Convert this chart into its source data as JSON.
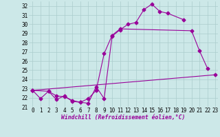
{
  "line1_points": [
    [
      0,
      22.8
    ],
    [
      1,
      21.9
    ],
    [
      2,
      22.7
    ],
    [
      3,
      21.8
    ],
    [
      4,
      22.2
    ],
    [
      5,
      21.6
    ],
    [
      6,
      21.5
    ],
    [
      7,
      21.4
    ],
    [
      8,
      23.2
    ],
    [
      9,
      21.9
    ],
    [
      10,
      28.7
    ],
    [
      11,
      29.4
    ],
    [
      12,
      30.0
    ],
    [
      13,
      30.2
    ],
    [
      14,
      31.6
    ],
    [
      15,
      32.2
    ],
    [
      16,
      31.4
    ],
    [
      17,
      31.2
    ],
    [
      19,
      30.5
    ]
  ],
  "line2_points": [
    [
      0,
      22.8
    ],
    [
      2,
      22.7
    ],
    [
      3,
      22.2
    ],
    [
      4,
      22.1
    ],
    [
      5,
      21.7
    ],
    [
      6,
      21.5
    ],
    [
      7,
      21.9
    ],
    [
      8,
      22.8
    ],
    [
      9,
      26.8
    ],
    [
      10,
      28.8
    ],
    [
      11,
      29.5
    ],
    [
      20,
      29.3
    ],
    [
      21,
      27.1
    ],
    [
      22,
      25.2
    ]
  ],
  "line3_points": [
    [
      0,
      22.8
    ],
    [
      23,
      24.5
    ]
  ],
  "background_color": "#cce8e8",
  "grid_color": "#aacccc",
  "line_color": "#990099",
  "markersize": 2.5,
  "xlabel": "Windchill (Refroidissement éolien,°C)",
  "ylim": [
    21,
    32.5
  ],
  "xlim": [
    -0.5,
    23.3
  ],
  "yticks": [
    21,
    22,
    23,
    24,
    25,
    26,
    27,
    28,
    29,
    30,
    31,
    32
  ],
  "xticks": [
    0,
    1,
    2,
    3,
    4,
    5,
    6,
    7,
    8,
    9,
    10,
    11,
    12,
    13,
    14,
    15,
    16,
    17,
    18,
    19,
    20,
    21,
    22,
    23
  ],
  "xlabel_fontsize": 5.8,
  "tick_fontsize": 5.5
}
